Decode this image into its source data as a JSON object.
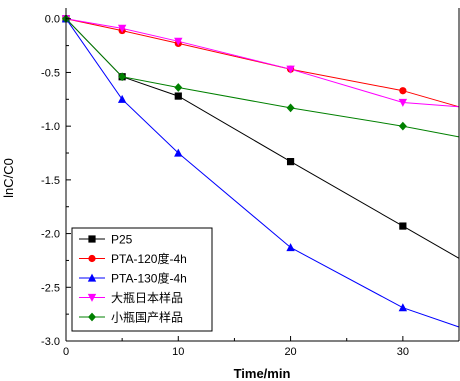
{
  "chart_data": {
    "type": "line",
    "xlabel": "Time/min",
    "ylabel": "lnC/C0",
    "xlim": [
      0,
      35
    ],
    "ylim": [
      -3.0,
      0.1
    ],
    "xticks": [
      0,
      10,
      20,
      30
    ],
    "xtick_labels": [
      "0",
      "10",
      "20",
      "30"
    ],
    "yticks": [
      0.0,
      -0.5,
      -1.0,
      -1.5,
      -2.0,
      -2.5,
      -3.0
    ],
    "ytick_labels": [
      "0.0",
      "-0.5",
      "-1.0",
      "-1.5",
      "-2.0",
      "-2.5",
      "-3.0"
    ],
    "grid": false,
    "legend_position": "bottom-left",
    "series": [
      {
        "name": "P25",
        "color": "#000000",
        "marker": "square",
        "x": [
          0,
          5,
          10,
          20,
          30
        ],
        "y": [
          0.0,
          -0.54,
          -0.72,
          -1.33,
          -1.93
        ],
        "fit_end": [
          35,
          -2.23
        ]
      },
      {
        "name": "PTA-120度-4h",
        "color": "#ff0000",
        "marker": "circle",
        "x": [
          0,
          5,
          10,
          20,
          30
        ],
        "y": [
          0.0,
          -0.11,
          -0.23,
          -0.47,
          -0.67
        ],
        "fit_end": [
          35,
          -0.82
        ]
      },
      {
        "name": "PTA-130度-4h",
        "color": "#0000ff",
        "marker": "triangle-up",
        "x": [
          0,
          5,
          10,
          20,
          30
        ],
        "y": [
          0.0,
          -0.75,
          -1.25,
          -2.13,
          -2.69
        ],
        "fit_end": [
          35,
          -2.87
        ]
      },
      {
        "name": "大瓶日本样品",
        "color": "#ff00ff",
        "marker": "triangle-down",
        "x": [
          0,
          5,
          10,
          20,
          30
        ],
        "y": [
          0.0,
          -0.09,
          -0.21,
          -0.47,
          -0.78
        ],
        "fit_end": [
          35,
          -0.82
        ]
      },
      {
        "name": "小瓶国产样品",
        "color": "#008000",
        "marker": "diamond",
        "x": [
          0,
          5,
          10,
          20,
          30
        ],
        "y": [
          0.0,
          -0.54,
          -0.64,
          -0.83,
          -1.0
        ],
        "fit_end": [
          35,
          -1.1
        ]
      }
    ]
  }
}
